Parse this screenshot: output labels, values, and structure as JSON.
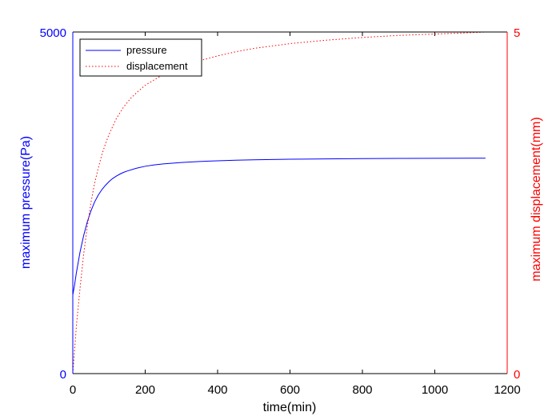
{
  "chart_data": {
    "type": "line",
    "title": "",
    "xlabel": "time(min)",
    "ylabel_left": "maximum pressure(Pa)",
    "ylabel_right": "maximum displacement(mm)",
    "xlim": [
      0,
      1200
    ],
    "ylim_left": [
      0,
      5000
    ],
    "ylim_right": [
      0,
      5
    ],
    "x_ticks": [
      "0",
      "200",
      "400",
      "600",
      "800",
      "1000",
      "1200"
    ],
    "y_left_ticks": [
      "0",
      "5000"
    ],
    "y_right_ticks": [
      "0",
      "5"
    ],
    "grid": false,
    "legend_position": "top-left",
    "series": [
      {
        "name": "pressure",
        "axis": "left",
        "color": "#0000ff",
        "style": "solid",
        "x": [
          0,
          5,
          10,
          20,
          30,
          40,
          50,
          60,
          70,
          80,
          90,
          100,
          110,
          120,
          130,
          140,
          150,
          175,
          200,
          225,
          250,
          300,
          350,
          400,
          450,
          500,
          600,
          700,
          800,
          900,
          1000,
          1100,
          1140
        ],
        "y": [
          1150,
          1300,
          1480,
          1780,
          2020,
          2220,
          2380,
          2510,
          2610,
          2690,
          2755,
          2810,
          2855,
          2890,
          2920,
          2945,
          2965,
          3005,
          3035,
          3055,
          3070,
          3090,
          3105,
          3115,
          3123,
          3130,
          3138,
          3143,
          3147,
          3150,
          3152,
          3153,
          3153
        ]
      },
      {
        "name": "displacement",
        "axis": "right",
        "color": "#ff0000",
        "style": "dotted",
        "x": [
          0,
          5,
          10,
          20,
          30,
          40,
          50,
          60,
          70,
          80,
          90,
          100,
          120,
          140,
          160,
          180,
          200,
          250,
          300,
          350,
          400,
          450,
          500,
          600,
          700,
          800,
          900,
          1000,
          1100,
          1140
        ],
        "y": [
          0,
          0.35,
          0.7,
          1.25,
          1.75,
          2.15,
          2.5,
          2.78,
          3.0,
          3.2,
          3.36,
          3.5,
          3.73,
          3.9,
          4.03,
          4.13,
          4.22,
          4.38,
          4.5,
          4.58,
          4.65,
          4.71,
          4.76,
          4.83,
          4.88,
          4.92,
          4.95,
          4.97,
          4.99,
          5.0
        ]
      }
    ]
  }
}
